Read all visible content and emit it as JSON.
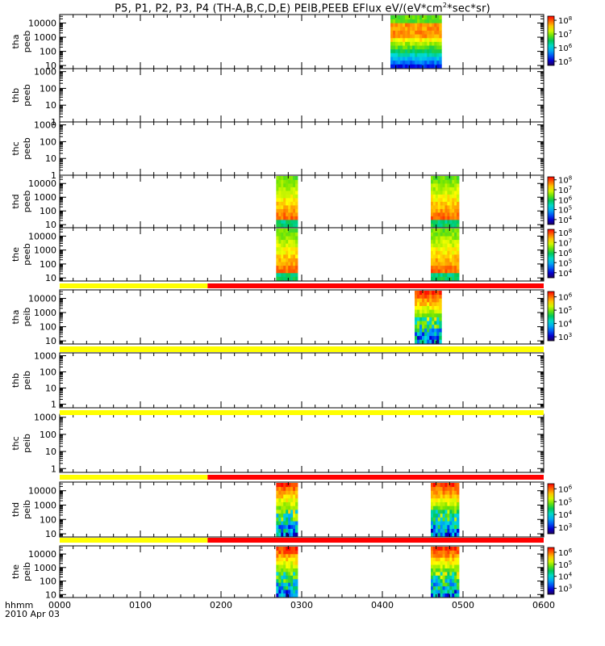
{
  "title": "P5, P1, P2, P3, P4 (TH-A,B,C,D,E) PEIB,PEEB EFlux eV/(eV*cm",
  "title_sup": "2",
  "title_tail": "*sec*sr)",
  "footer": {
    "time_unit": "hhmm",
    "date": "2010 Apr 03"
  },
  "chart_data": {
    "type": "heatmap",
    "title": "P5, P1, P2, P3, P4 (TH-A,B,C,D,E) PEIB,PEEB EFlux eV/(eV*cm^2*sec*sr)",
    "x_ticks": [
      "0000",
      "0100",
      "0200",
      "0300",
      "0400",
      "0500",
      "0600"
    ],
    "xlim": [
      "00:00",
      "06:00"
    ],
    "panels": [
      {
        "probe": "tha",
        "product": "peeb",
        "ylim": [
          6,
          40000
        ],
        "yscale": "log",
        "yticks": [
          10,
          100,
          1000,
          10000
        ],
        "ytick_labels": [
          "10",
          "100",
          "1000",
          "10000"
        ],
        "data_intervals": [
          [
            "04:06",
            "04:44"
          ]
        ],
        "colorbar": {
          "exps": [
            5,
            6,
            7,
            8
          ],
          "min_exp": 4.7,
          "max_exp": 8.3
        }
      },
      {
        "probe": "thb",
        "product": "peeb",
        "ylim": [
          1,
          1500
        ],
        "yscale": "log",
        "yticks": [
          1,
          10,
          100,
          1000
        ],
        "ytick_labels": [
          "1",
          "10",
          "100",
          "1000"
        ],
        "data_intervals": [],
        "colorbar": null
      },
      {
        "probe": "thc",
        "product": "peeb",
        "ylim": [
          1,
          1500
        ],
        "yscale": "log",
        "yticks": [
          1,
          10,
          100,
          1000
        ],
        "ytick_labels": [
          "1",
          "10",
          "100",
          "1000"
        ],
        "data_intervals": [],
        "colorbar": null
      },
      {
        "probe": "thd",
        "product": "peeb",
        "ylim": [
          6,
          40000
        ],
        "yscale": "log",
        "yticks": [
          10,
          100,
          1000,
          10000
        ],
        "ytick_labels": [
          "10",
          "100",
          "1000",
          "10000"
        ],
        "data_intervals": [
          [
            "02:41",
            "02:57"
          ],
          [
            "04:36",
            "04:57"
          ]
        ],
        "colorbar": {
          "exps": [
            4,
            5,
            6,
            7,
            8
          ],
          "min_exp": 3.5,
          "max_exp": 8.3
        }
      },
      {
        "probe": "the",
        "product": "peeb",
        "ylim": [
          6,
          40000
        ],
        "yscale": "log",
        "yticks": [
          10,
          100,
          1000,
          10000
        ],
        "ytick_labels": [
          "10",
          "100",
          "1000",
          "10000"
        ],
        "data_intervals": [
          [
            "02:41",
            "02:57"
          ],
          [
            "04:36",
            "04:57"
          ]
        ],
        "colorbar": {
          "exps": [
            4,
            5,
            6,
            7,
            8
          ],
          "min_exp": 3.5,
          "max_exp": 8.3
        }
      },
      {
        "probe": "tha",
        "product": "peib",
        "ylim": [
          6,
          40000
        ],
        "yscale": "log",
        "yticks": [
          10,
          100,
          1000,
          10000
        ],
        "ytick_labels": [
          "10",
          "100",
          "1000",
          "10000"
        ],
        "data_intervals": [
          [
            "04:24",
            "04:44"
          ]
        ],
        "colorbar": {
          "exps": [
            3,
            4,
            5,
            6
          ],
          "min_exp": 2.7,
          "max_exp": 6.4
        }
      },
      {
        "probe": "thb",
        "product": "peib",
        "ylim": [
          0.6,
          1500
        ],
        "yscale": "log",
        "yticks": [
          1,
          10,
          100,
          1000
        ],
        "ytick_labels": [
          "1",
          "10",
          "100",
          "1000"
        ],
        "data_intervals": [],
        "colorbar": null
      },
      {
        "probe": "thc",
        "product": "peib",
        "ylim": [
          0.6,
          1500
        ],
        "yscale": "log",
        "yticks": [
          1,
          10,
          100,
          1000
        ],
        "ytick_labels": [
          "1",
          "10",
          "100",
          "1000"
        ],
        "data_intervals": [],
        "colorbar": null
      },
      {
        "probe": "thd",
        "product": "peib",
        "ylim": [
          6,
          40000
        ],
        "yscale": "log",
        "yticks": [
          10,
          100,
          1000,
          10000
        ],
        "ytick_labels": [
          "10",
          "100",
          "1000",
          "10000"
        ],
        "data_intervals": [
          [
            "02:41",
            "02:57"
          ],
          [
            "04:36",
            "04:57"
          ]
        ],
        "colorbar": {
          "exps": [
            3,
            4,
            5,
            6
          ],
          "min_exp": 2.5,
          "max_exp": 6.4
        }
      },
      {
        "probe": "the",
        "product": "peib",
        "ylim": [
          6,
          40000
        ],
        "yscale": "log",
        "yticks": [
          10,
          100,
          1000,
          10000
        ],
        "ytick_labels": [
          "10",
          "100",
          "1000",
          "10000"
        ],
        "data_intervals": [
          [
            "02:41",
            "02:57"
          ],
          [
            "04:36",
            "04:57"
          ]
        ],
        "colorbar": {
          "exps": [
            3,
            4,
            5,
            6
          ],
          "min_exp": 2.5,
          "max_exp": 6.4
        }
      }
    ],
    "status_bars": [
      {
        "after_panel": 4,
        "segments": [
          [
            "00:00",
            "01:50",
            "#ffff00"
          ],
          [
            "01:50",
            "06:00",
            "#ff0000"
          ]
        ]
      },
      {
        "after_panel": 5,
        "segments": [
          [
            "00:00",
            "06:00",
            "#ffff00"
          ]
        ]
      },
      {
        "after_panel": 6,
        "segments": [
          [
            "00:00",
            "06:00",
            "#ffff00"
          ]
        ]
      },
      {
        "after_panel": 7,
        "segments": [
          [
            "00:00",
            "01:50",
            "#ffff00"
          ],
          [
            "01:50",
            "06:00",
            "#ff0000"
          ]
        ]
      },
      {
        "after_panel": 8,
        "segments": [
          [
            "00:00",
            "01:50",
            "#ffff00"
          ],
          [
            "01:50",
            "06:00",
            "#ff0000"
          ]
        ]
      }
    ]
  }
}
